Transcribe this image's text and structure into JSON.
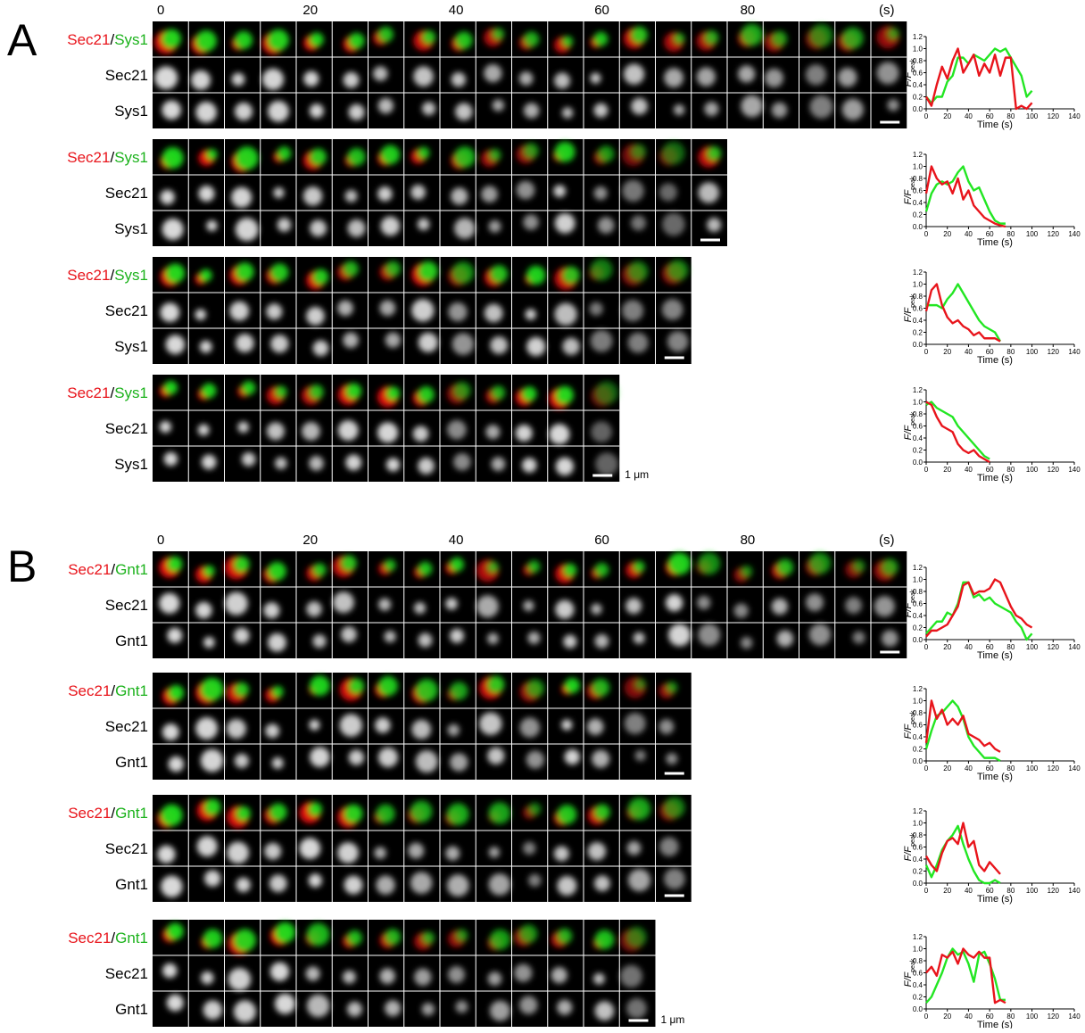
{
  "panels": [
    {
      "label": "A",
      "times": [
        0,
        20,
        40,
        60,
        80
      ],
      "time_unit": "(s)",
      "scale_label": "1 μm",
      "blocks": [
        {
          "merge": [
            "Sec21",
            "/",
            "Sys1"
          ],
          "rows": [
            "Sec21",
            "Sys1"
          ]
        },
        {
          "merge": [
            "Sec21",
            "/",
            "Sys1"
          ],
          "rows": [
            "Sec21",
            "Sys1"
          ]
        },
        {
          "merge": [
            "Sec21",
            "/",
            "Sys1"
          ],
          "rows": [
            "Sec21",
            "Sys1"
          ]
        },
        {
          "merge": [
            "Sec21",
            "/",
            "Sys1"
          ],
          "rows": [
            "Sec21",
            "Sys1"
          ]
        }
      ]
    },
    {
      "label": "B",
      "times": [
        0,
        20,
        40,
        60,
        80
      ],
      "time_unit": "(s)",
      "scale_label": "1 μm",
      "blocks": [
        {
          "merge": [
            "Sec21",
            "/",
            "Gnt1"
          ],
          "rows": [
            "Sec21",
            "Gnt1"
          ]
        },
        {
          "merge": [
            "Sec21",
            "/",
            "Gnt1"
          ],
          "rows": [
            "Sec21",
            "Gnt1"
          ]
        },
        {
          "merge": [
            "Sec21",
            "/",
            "Gnt1"
          ],
          "rows": [
            "Sec21",
            "Gnt1"
          ]
        },
        {
          "merge": [
            "Sec21",
            "/",
            "Gnt1"
          ],
          "rows": [
            "Sec21",
            "Gnt1"
          ]
        }
      ]
    }
  ],
  "chart_data": [
    {
      "type": "line",
      "x": [
        0,
        5,
        10,
        15,
        20,
        25,
        30,
        35,
        40,
        45,
        50,
        55,
        60,
        65,
        70,
        75,
        80,
        85,
        90,
        95,
        100
      ],
      "series": [
        {
          "color": "#22e622",
          "values": [
            0.2,
            0.1,
            0.2,
            0.2,
            0.45,
            0.55,
            0.85,
            0.85,
            0.75,
            0.9,
            0.85,
            0.8,
            0.9,
            1.0,
            0.95,
            1.0,
            0.85,
            0.7,
            0.55,
            0.2,
            0.3
          ]
        },
        {
          "color": "#e8141b",
          "values": [
            0.2,
            0.05,
            0.4,
            0.7,
            0.5,
            0.8,
            1.0,
            0.6,
            0.75,
            0.9,
            0.55,
            0.75,
            0.6,
            0.9,
            0.55,
            0.85,
            0.85,
            0.0,
            0.05,
            0.0,
            0.1
          ]
        }
      ],
      "xlim": [
        0,
        140
      ],
      "ylim": [
        0,
        1.2
      ],
      "xticks": [
        0,
        20,
        40,
        60,
        80,
        100,
        120,
        140
      ],
      "yticks": [
        {
          "value": 0,
          "label": "0.0"
        },
        0.2,
        0.4,
        0.6,
        0.8,
        {
          "value": 1,
          "label": "1.0"
        },
        1.2
      ],
      "y_label": "F/F",
      "y_label_sub": "peak",
      "x_label": "Time (s)"
    },
    {
      "type": "line",
      "x": [
        0,
        5,
        10,
        15,
        20,
        25,
        30,
        35,
        40,
        45,
        50,
        55,
        60,
        65,
        70,
        75
      ],
      "series": [
        {
          "color": "#22e622",
          "values": [
            0.25,
            0.55,
            0.7,
            0.75,
            0.7,
            0.75,
            0.9,
            1.0,
            0.75,
            0.6,
            0.65,
            0.45,
            0.25,
            0.1,
            0.05,
            0.05
          ]
        },
        {
          "color": "#e8141b",
          "values": [
            0.55,
            1.0,
            0.8,
            0.7,
            0.75,
            0.55,
            0.8,
            0.45,
            0.6,
            0.35,
            0.25,
            0.15,
            0.1,
            0.05,
            0.02,
            0.0
          ]
        }
      ],
      "xlim": [
        0,
        140
      ],
      "ylim": [
        0,
        1.2
      ],
      "xticks": [
        0,
        20,
        40,
        60,
        80,
        100,
        120,
        140
      ],
      "yticks": [
        {
          "value": 0,
          "label": "0.0"
        },
        0.2,
        0.4,
        0.6,
        0.8,
        {
          "value": 1,
          "label": "1.0"
        },
        1.2
      ],
      "y_label": "F/F",
      "y_label_sub": "peak",
      "x_label": "Time (s)"
    },
    {
      "type": "line",
      "x": [
        0,
        5,
        10,
        15,
        20,
        25,
        30,
        35,
        40,
        45,
        50,
        55,
        60,
        65,
        70
      ],
      "series": [
        {
          "color": "#22e622",
          "values": [
            0.65,
            0.65,
            0.65,
            0.6,
            0.75,
            0.85,
            1.0,
            0.85,
            0.7,
            0.55,
            0.4,
            0.3,
            0.25,
            0.2,
            0.05
          ]
        },
        {
          "color": "#e8141b",
          "values": [
            0.55,
            0.9,
            1.0,
            0.65,
            0.45,
            0.35,
            0.4,
            0.3,
            0.25,
            0.15,
            0.2,
            0.1,
            0.1,
            0.1,
            0.05
          ]
        }
      ],
      "xlim": [
        0,
        140
      ],
      "ylim": [
        0,
        1.2
      ],
      "xticks": [
        0,
        20,
        40,
        60,
        80,
        100,
        120,
        140
      ],
      "yticks": [
        {
          "value": 0,
          "label": "0.0"
        },
        0.2,
        0.4,
        0.6,
        0.8,
        {
          "value": 1,
          "label": "1.0"
        },
        1.2
      ],
      "y_label": "F/F",
      "y_label_sub": "peak",
      "x_label": "Time (s)"
    },
    {
      "type": "line",
      "x": [
        0,
        5,
        10,
        15,
        20,
        25,
        30,
        35,
        40,
        45,
        50,
        55,
        60
      ],
      "series": [
        {
          "color": "#22e622",
          "values": [
            0.95,
            1.0,
            0.9,
            0.85,
            0.8,
            0.75,
            0.6,
            0.5,
            0.4,
            0.3,
            0.2,
            0.1,
            0.05
          ]
        },
        {
          "color": "#e8141b",
          "values": [
            1.0,
            0.95,
            0.75,
            0.6,
            0.55,
            0.5,
            0.3,
            0.2,
            0.15,
            0.2,
            0.1,
            0.05,
            0.0
          ]
        }
      ],
      "xlim": [
        0,
        140
      ],
      "ylim": [
        0,
        1.2
      ],
      "xticks": [
        0,
        20,
        40,
        60,
        80,
        100,
        120,
        140
      ],
      "yticks": [
        {
          "value": 0,
          "label": "0.0"
        },
        0.2,
        0.4,
        0.6,
        0.8,
        {
          "value": 1,
          "label": "1.0"
        },
        1.2
      ],
      "y_label": "F/F",
      "y_label_sub": "peak",
      "x_label": "Time (s)"
    },
    {
      "type": "line",
      "x": [
        0,
        5,
        10,
        15,
        20,
        25,
        30,
        35,
        40,
        45,
        50,
        55,
        60,
        65,
        70,
        75,
        80,
        85,
        90,
        95,
        100
      ],
      "series": [
        {
          "color": "#22e622",
          "values": [
            0.1,
            0.2,
            0.3,
            0.3,
            0.45,
            0.4,
            0.6,
            0.95,
            0.95,
            0.7,
            0.75,
            0.65,
            0.7,
            0.6,
            0.55,
            0.5,
            0.45,
            0.3,
            0.2,
            0.0,
            0.1
          ]
        },
        {
          "color": "#e8141b",
          "values": [
            0.05,
            0.15,
            0.15,
            0.2,
            0.25,
            0.4,
            0.55,
            0.9,
            0.95,
            0.75,
            0.8,
            0.8,
            0.85,
            1.0,
            0.95,
            0.75,
            0.55,
            0.4,
            0.35,
            0.25,
            0.2
          ]
        }
      ],
      "xlim": [
        0,
        140
      ],
      "ylim": [
        0,
        1.2
      ],
      "xticks": [
        0,
        20,
        40,
        60,
        80,
        100,
        120,
        140
      ],
      "yticks": [
        {
          "value": 0,
          "label": "0.0"
        },
        0.2,
        0.4,
        0.6,
        0.8,
        {
          "value": 1,
          "label": "1.0"
        },
        1.2
      ],
      "y_label": "F/F",
      "y_label_sub": "peak",
      "x_label": "Time (s)"
    },
    {
      "type": "line",
      "x": [
        0,
        5,
        10,
        15,
        20,
        25,
        30,
        35,
        40,
        45,
        50,
        55,
        60,
        65,
        70
      ],
      "series": [
        {
          "color": "#22e622",
          "values": [
            0.2,
            0.5,
            0.75,
            0.8,
            0.9,
            1.0,
            0.9,
            0.7,
            0.4,
            0.25,
            0.15,
            0.05,
            0.05,
            0.05,
            0.0
          ]
        },
        {
          "color": "#e8141b",
          "values": [
            0.3,
            1.0,
            0.7,
            0.85,
            0.6,
            0.7,
            0.6,
            0.75,
            0.45,
            0.4,
            0.35,
            0.25,
            0.3,
            0.2,
            0.15
          ]
        }
      ],
      "xlim": [
        0,
        140
      ],
      "ylim": [
        0,
        1.2
      ],
      "xticks": [
        0,
        20,
        40,
        60,
        80,
        100,
        120,
        140
      ],
      "yticks": [
        {
          "value": 0,
          "label": "0.0"
        },
        0.2,
        0.4,
        0.6,
        0.8,
        {
          "value": 1,
          "label": "1.0"
        },
        1.2
      ],
      "y_label": "F/F",
      "y_label_sub": "peak",
      "x_label": "Time (s)"
    },
    {
      "type": "line",
      "x": [
        0,
        5,
        10,
        15,
        20,
        25,
        30,
        35,
        40,
        45,
        50,
        55,
        60,
        65,
        70
      ],
      "series": [
        {
          "color": "#22e622",
          "values": [
            0.3,
            0.1,
            0.3,
            0.55,
            0.7,
            0.8,
            0.95,
            0.65,
            0.4,
            0.2,
            0.05,
            0.0,
            0.0,
            0.05,
            0.0
          ]
        },
        {
          "color": "#e8141b",
          "values": [
            0.45,
            0.3,
            0.2,
            0.5,
            0.7,
            0.75,
            0.65,
            1.0,
            0.6,
            0.7,
            0.3,
            0.2,
            0.35,
            0.25,
            0.15
          ]
        }
      ],
      "xlim": [
        0,
        140
      ],
      "ylim": [
        0,
        1.2
      ],
      "xticks": [
        0,
        20,
        40,
        60,
        80,
        100,
        120,
        140
      ],
      "yticks": [
        {
          "value": 0,
          "label": "0.0"
        },
        0.2,
        0.4,
        0.6,
        0.8,
        {
          "value": 1,
          "label": "1.0"
        },
        1.2
      ],
      "y_label": "F/F",
      "y_label_sub": "peak",
      "x_label": "Time (s)"
    },
    {
      "type": "line",
      "x": [
        0,
        5,
        10,
        15,
        20,
        25,
        30,
        35,
        40,
        45,
        50,
        55,
        60,
        65,
        70,
        75
      ],
      "series": [
        {
          "color": "#22e622",
          "values": [
            0.1,
            0.2,
            0.4,
            0.6,
            0.85,
            1.0,
            0.9,
            0.95,
            0.75,
            0.45,
            0.9,
            0.95,
            0.75,
            0.5,
            0.15,
            0.15
          ]
        },
        {
          "color": "#e8141b",
          "values": [
            0.6,
            0.7,
            0.55,
            0.9,
            0.85,
            0.95,
            0.75,
            1.0,
            0.9,
            0.85,
            0.95,
            0.85,
            0.85,
            0.1,
            0.15,
            0.1
          ]
        }
      ],
      "xlim": [
        0,
        140
      ],
      "ylim": [
        0,
        1.2
      ],
      "xticks": [
        0,
        20,
        40,
        60,
        80,
        100,
        120,
        140
      ],
      "yticks": [
        {
          "value": 0,
          "label": "0.0"
        },
        0.2,
        0.4,
        0.6,
        0.8,
        {
          "value": 1,
          "label": "1.0"
        },
        1.2
      ],
      "y_label": "F/F",
      "y_label_sub": "peak",
      "x_label": "Time (s)"
    }
  ]
}
